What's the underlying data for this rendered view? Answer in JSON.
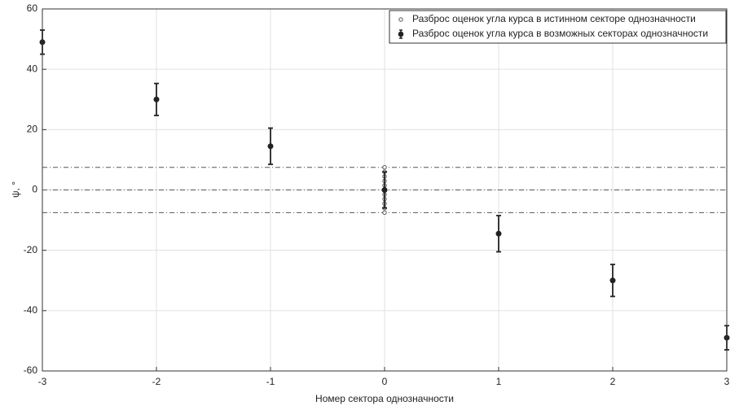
{
  "chart_data": {
    "type": "scatter",
    "xlabel": "Номер сектора однозначности",
    "ylabel": "ψ, °",
    "xlim": [
      -3,
      3
    ],
    "xticks": [
      -3,
      -2,
      -1,
      0,
      1,
      2,
      3
    ],
    "ylim": [
      -60,
      60
    ],
    "yticks": [
      -60,
      -40,
      -20,
      0,
      20,
      40,
      60
    ],
    "grid": true,
    "legend": "upper right",
    "hlines": [
      7.5,
      0,
      -7.5
    ],
    "series": [
      {
        "name": "Разброс оценок угла курса в истинном секторе однозначности",
        "color": "#555555",
        "marker": "open",
        "x": [
          0,
          0,
          0,
          0,
          0,
          0,
          0,
          0,
          0,
          0,
          0
        ],
        "values": [
          -7.5,
          -6,
          -4.5,
          -3,
          -1.5,
          0,
          1.5,
          3,
          4.5,
          6,
          7.5
        ]
      },
      {
        "name": "Разброс оценок угла курса в возможных секторах однозначности",
        "color": "#222222",
        "marker": "filled",
        "x": [
          -3,
          -2,
          -1,
          0,
          1,
          2,
          3
        ],
        "values": [
          49,
          30,
          14.5,
          0,
          -14.5,
          -30,
          -49
        ],
        "errors": [
          4,
          5.3,
          6,
          6,
          6,
          5.3,
          4
        ]
      }
    ]
  }
}
